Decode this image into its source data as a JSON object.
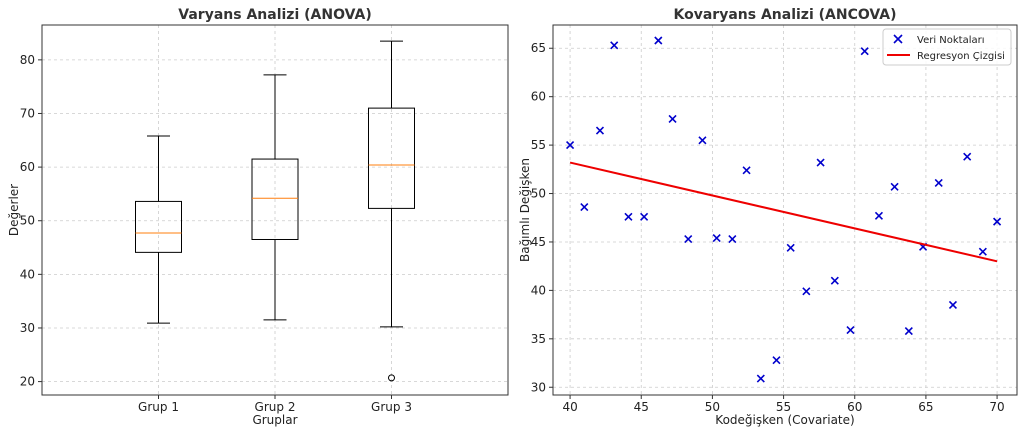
{
  "chart_data": [
    {
      "type": "boxplot",
      "title": "Varyans Analizi (ANOVA)",
      "xlabel": "Gruplar",
      "ylabel": "Değerler",
      "ylim": [
        17.5,
        86.5
      ],
      "yticks": [
        20,
        30,
        40,
        50,
        60,
        70,
        80
      ],
      "grid": true,
      "categories": [
        "Grup 1",
        "Grup 2",
        "Grup 3"
      ],
      "boxes": [
        {
          "whislo": 30.9,
          "q1": 44.1,
          "med": 47.7,
          "q3": 53.6,
          "whishi": 65.8,
          "fliers": []
        },
        {
          "whislo": 31.5,
          "q1": 46.5,
          "med": 54.2,
          "q3": 61.5,
          "whishi": 77.2,
          "fliers": []
        },
        {
          "whislo": 30.2,
          "q1": 52.3,
          "med": 60.4,
          "q3": 71.0,
          "whishi": 83.5,
          "fliers": [
            20.7
          ]
        }
      ],
      "colors": {
        "box": "#000000",
        "median": "#ff7f0e"
      }
    },
    {
      "type": "scatter",
      "title": "Kovaryans Analizi (ANCOVA)",
      "xlabel": "Kodeğişken (Covariate)",
      "ylabel": "Bağımlı Değişken",
      "xlim": [
        38.8,
        71.4
      ],
      "ylim": [
        29.2,
        67.4
      ],
      "xticks": [
        40,
        45,
        50,
        55,
        60,
        65,
        70
      ],
      "yticks": [
        30,
        35,
        40,
        45,
        50,
        55,
        60,
        65
      ],
      "grid": true,
      "legend": {
        "position": "top-right",
        "entries": [
          "Veri Noktaları",
          "Regresyon Çizgisi"
        ]
      },
      "series": [
        {
          "name": "Veri Noktaları",
          "marker": "x",
          "color": "#0000cc",
          "x": [
            40.0,
            41.0,
            42.1,
            43.1,
            44.1,
            45.2,
            46.2,
            47.2,
            48.3,
            49.3,
            50.3,
            51.4,
            52.4,
            53.4,
            54.5,
            55.5,
            56.6,
            57.6,
            58.6,
            59.7,
            60.7,
            61.7,
            62.8,
            63.8,
            64.8,
            65.9,
            66.9,
            67.9,
            69.0,
            70.0
          ],
          "y": [
            55.0,
            48.6,
            56.5,
            65.3,
            47.6,
            47.6,
            65.8,
            57.7,
            45.3,
            55.5,
            45.4,
            45.3,
            52.4,
            30.9,
            32.8,
            44.4,
            39.9,
            53.2,
            41.0,
            35.9,
            64.7,
            47.7,
            50.7,
            35.8,
            44.5,
            51.1,
            38.5,
            53.8,
            44.0,
            47.1
          ]
        },
        {
          "name": "Regresyon Çizgisi",
          "type": "line",
          "color": "#ee0000",
          "x": [
            40,
            70
          ],
          "y": [
            53.2,
            43.0
          ]
        }
      ]
    }
  ]
}
